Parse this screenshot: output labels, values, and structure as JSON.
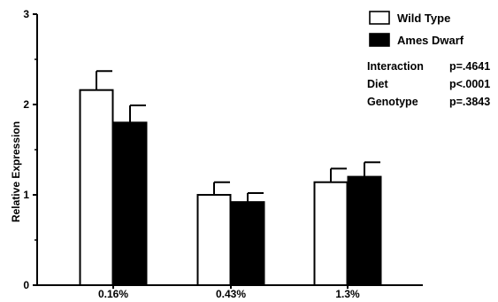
{
  "chart_data": {
    "type": "bar",
    "categories": [
      "0.16%",
      "0.43%",
      "1.3%"
    ],
    "series": [
      {
        "name": "Wild Type",
        "values": [
          2.16,
          1.0,
          1.14
        ],
        "errors": [
          0.21,
          0.14,
          0.15
        ],
        "fill": "#ffffff"
      },
      {
        "name": "Ames Dwarf",
        "values": [
          1.8,
          0.92,
          1.2
        ],
        "errors": [
          0.19,
          0.1,
          0.16
        ],
        "fill": "#000000"
      }
    ],
    "ylabel": "Relative Expression",
    "xlabel": "",
    "ylim": [
      0,
      3
    ],
    "yticks": [
      "0",
      "1",
      "2",
      "3"
    ],
    "grid": false,
    "legend_position": "top-right",
    "stats": [
      {
        "label": "Interaction",
        "value": "p=.4641"
      },
      {
        "label": "Diet",
        "value": "p<.0001"
      },
      {
        "label": "Genotype",
        "value": "p=.3843"
      }
    ]
  }
}
